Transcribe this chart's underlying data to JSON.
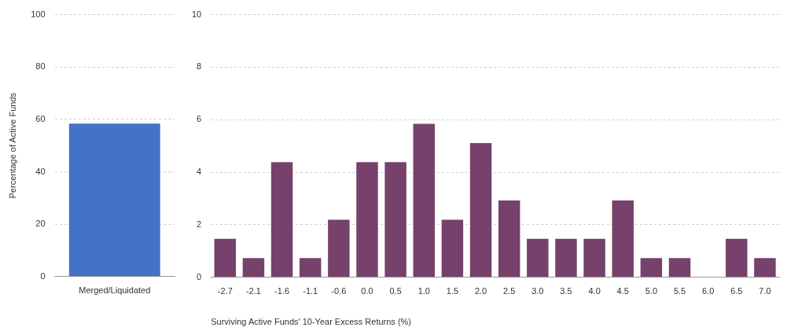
{
  "chart_data": [
    {
      "type": "bar",
      "ylabel": "Percentage of Active Funds",
      "categories": [
        "Merged/Liquidated"
      ],
      "values": [
        58.4
      ],
      "color": "#4472c4",
      "ylim": [
        0,
        100
      ],
      "yticks": [
        0,
        20,
        40,
        60,
        80,
        100
      ],
      "grid": "y"
    },
    {
      "type": "bar",
      "xlabel": "Surviving Active Funds' 10-Year Excess Returns (%)",
      "categories": [
        "-2.7",
        "-2.1",
        "-1.6",
        "-1.1",
        "-0.6",
        "0.0",
        "0.5",
        "1.0",
        "1.5",
        "2.0",
        "2.5",
        "3.0",
        "3.5",
        "4.0",
        "4.5",
        "5.0",
        "5.5",
        "6.0",
        "6.5",
        "7.0"
      ],
      "values": [
        1.46,
        0.73,
        4.38,
        0.73,
        2.19,
        4.38,
        4.38,
        5.84,
        2.19,
        5.11,
        2.92,
        1.46,
        1.46,
        1.46,
        2.92,
        0.73,
        0.73,
        0,
        1.46,
        0.73
      ],
      "color": "#76416a",
      "ylim": [
        0,
        10
      ],
      "yticks": [
        0,
        2,
        4,
        6,
        8,
        10
      ],
      "grid": "y"
    }
  ]
}
